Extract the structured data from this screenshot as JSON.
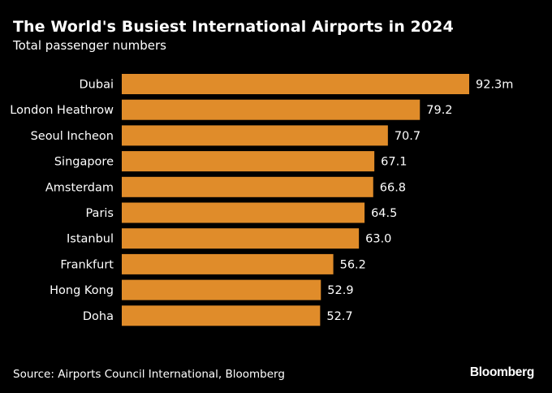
{
  "chart_data": {
    "type": "bar",
    "orientation": "horizontal",
    "title": "The World's Busiest International Airports in 2024",
    "subtitle": "Total passenger numbers",
    "categories": [
      "Dubai",
      "London Heathrow",
      "Seoul Incheon",
      "Singapore",
      "Amsterdam",
      "Paris",
      "Istanbul",
      "Frankfurt",
      "Hong Kong",
      "Doha"
    ],
    "values": [
      92.3,
      79.2,
      70.7,
      67.1,
      66.8,
      64.5,
      63.0,
      56.2,
      52.9,
      52.7
    ],
    "value_labels": [
      "92.3m",
      "79.2",
      "70.7",
      "67.1",
      "66.8",
      "64.5",
      "63.0",
      "56.2",
      "52.9",
      "52.7"
    ],
    "unit": "m",
    "xlim": [
      0,
      92.3
    ],
    "grid": false,
    "bar_color": "#e08c2a"
  },
  "footer": {
    "source": "Source: Airports Council International, Bloomberg",
    "brand": "Bloomberg"
  },
  "colors": {
    "background": "#000000",
    "text": "#ffffff",
    "bar": "#e08c2a"
  }
}
